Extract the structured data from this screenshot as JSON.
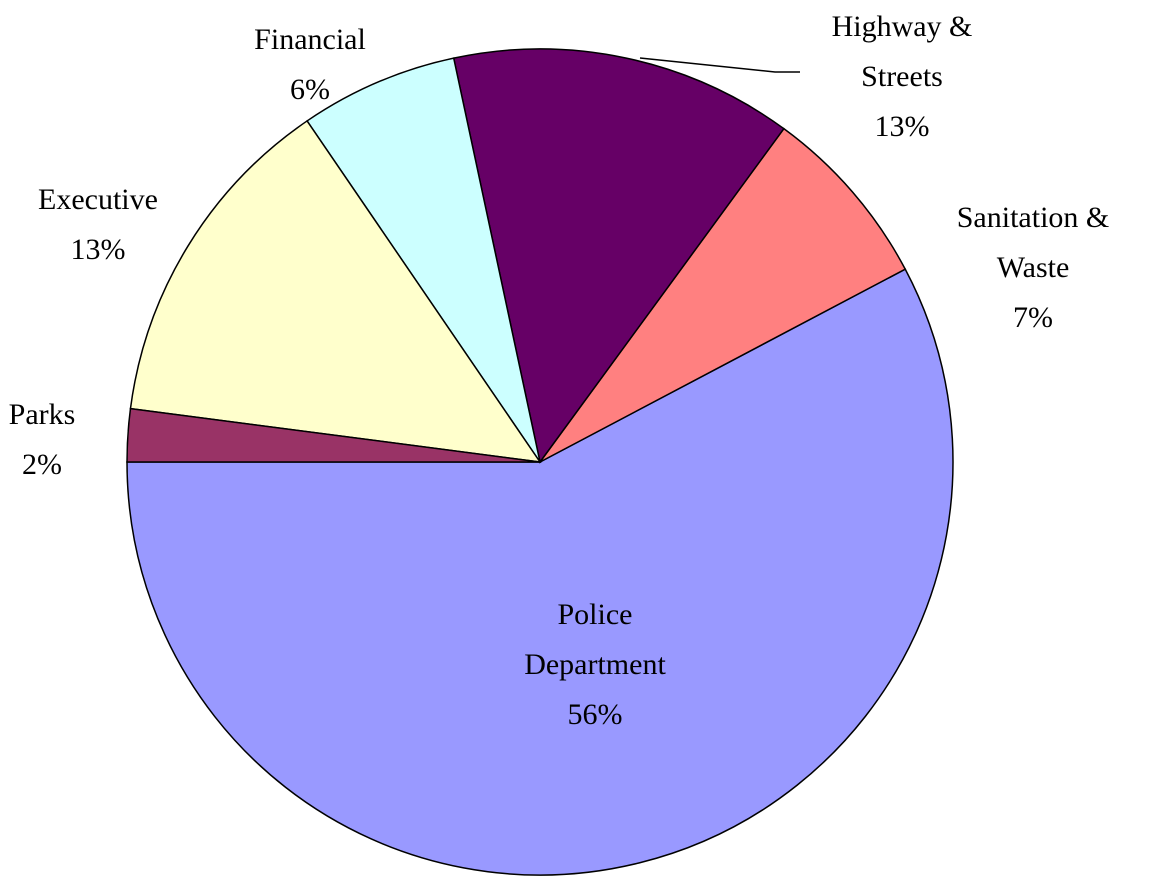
{
  "chart_data": {
    "type": "pie",
    "categories": [
      "Police Department",
      "Sanitation & Waste",
      "Highway & Streets",
      "Financial",
      "Executive",
      "Parks"
    ],
    "values": [
      56,
      7,
      13,
      6,
      13,
      2
    ],
    "value_labels": [
      "56%",
      "7%",
      "13%",
      "6%",
      "13%",
      "2%"
    ],
    "colors": [
      "#9999ff",
      "#ff8080",
      "#660066",
      "#ccffff",
      "#ffffcc",
      "#993366"
    ]
  }
}
